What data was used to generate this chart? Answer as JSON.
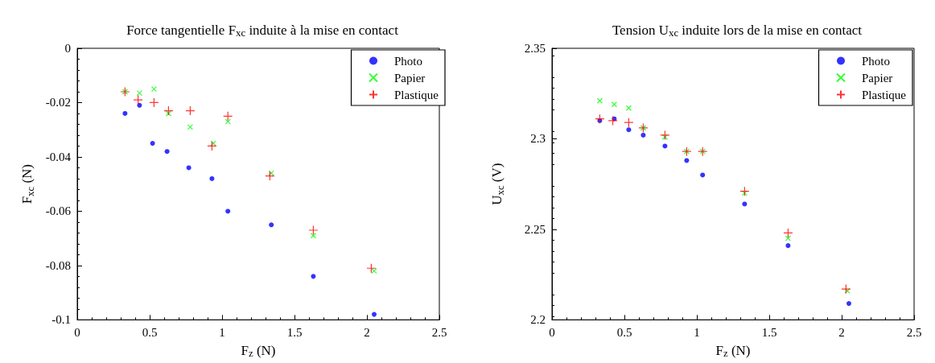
{
  "chart_data": [
    {
      "type": "scatter",
      "title": "Force tangentielle F$_{xc}$ induite à la mise en contact",
      "xlabel": "F$_{z}$ (N)",
      "ylabel": "F$_{xc}$ (N)",
      "xlim": [
        0,
        2.5
      ],
      "xticks": [
        0,
        0.5,
        1,
        1.5,
        2,
        2.5
      ],
      "ylim": [
        -0.1,
        0
      ],
      "yticks": [
        -0.1,
        -0.08,
        -0.06,
        -0.04,
        -0.02,
        0
      ],
      "grid": false,
      "legend": "top right",
      "series": [
        {
          "name": "Photo",
          "color": "#0000ff",
          "marker": "circle",
          "x": [
            0.33,
            0.43,
            0.52,
            0.62,
            0.77,
            0.93,
            1.04,
            1.34,
            1.63,
            2.05
          ],
          "values": [
            -0.024,
            -0.021,
            -0.035,
            -0.038,
            -0.044,
            -0.048,
            -0.06,
            -0.065,
            -0.084,
            -0.098
          ]
        },
        {
          "name": "Papier",
          "color": "#00ff00",
          "marker": "cross",
          "x": [
            0.33,
            0.43,
            0.53,
            0.63,
            0.78,
            0.94,
            1.04,
            1.34,
            1.63,
            2.05
          ],
          "values": [
            -0.016,
            -0.0165,
            -0.015,
            -0.024,
            -0.029,
            -0.035,
            -0.027,
            -0.046,
            -0.069,
            -0.082
          ]
        },
        {
          "name": "Plastique",
          "color": "#ff0000",
          "marker": "plus",
          "x": [
            0.33,
            0.42,
            0.53,
            0.63,
            0.78,
            0.93,
            1.04,
            1.33,
            1.63,
            2.03
          ],
          "values": [
            -0.016,
            -0.019,
            -0.02,
            -0.023,
            -0.023,
            -0.036,
            -0.025,
            -0.047,
            -0.067,
            -0.081
          ]
        }
      ]
    },
    {
      "type": "scatter",
      "title": "Tension U$_{xc}$ induite lors de la mise en contact",
      "xlabel": "F$_{z}$ (N)",
      "ylabel": "U$_{xc}$ (V)",
      "xlim": [
        0,
        2.5
      ],
      "xticks": [
        0,
        0.5,
        1,
        1.5,
        2,
        2.5
      ],
      "ylim": [
        2.2,
        2.35
      ],
      "yticks": [
        2.2,
        2.25,
        2.3,
        2.35
      ],
      "grid": false,
      "legend": "top right",
      "series": [
        {
          "name": "Photo",
          "color": "#0000ff",
          "marker": "circle",
          "x": [
            0.33,
            0.43,
            0.53,
            0.63,
            0.78,
            0.93,
            1.04,
            1.33,
            1.63,
            2.05
          ],
          "values": [
            2.31,
            2.311,
            2.305,
            2.302,
            2.296,
            2.288,
            2.28,
            2.264,
            2.241,
            2.209
          ]
        },
        {
          "name": "Papier",
          "color": "#00ff00",
          "marker": "cross",
          "x": [
            0.33,
            0.43,
            0.53,
            0.63,
            0.78,
            0.93,
            1.04,
            1.33,
            1.63,
            2.04
          ],
          "values": [
            2.321,
            2.319,
            2.317,
            2.306,
            2.301,
            2.293,
            2.293,
            2.27,
            2.245,
            2.216
          ]
        },
        {
          "name": "Plastique",
          "color": "#ff0000",
          "marker": "plus",
          "x": [
            0.33,
            0.42,
            0.53,
            0.63,
            0.78,
            0.93,
            1.04,
            1.33,
            1.63,
            2.03
          ],
          "values": [
            2.311,
            2.31,
            2.309,
            2.306,
            2.302,
            2.293,
            2.293,
            2.271,
            2.248,
            2.217
          ]
        }
      ]
    }
  ]
}
